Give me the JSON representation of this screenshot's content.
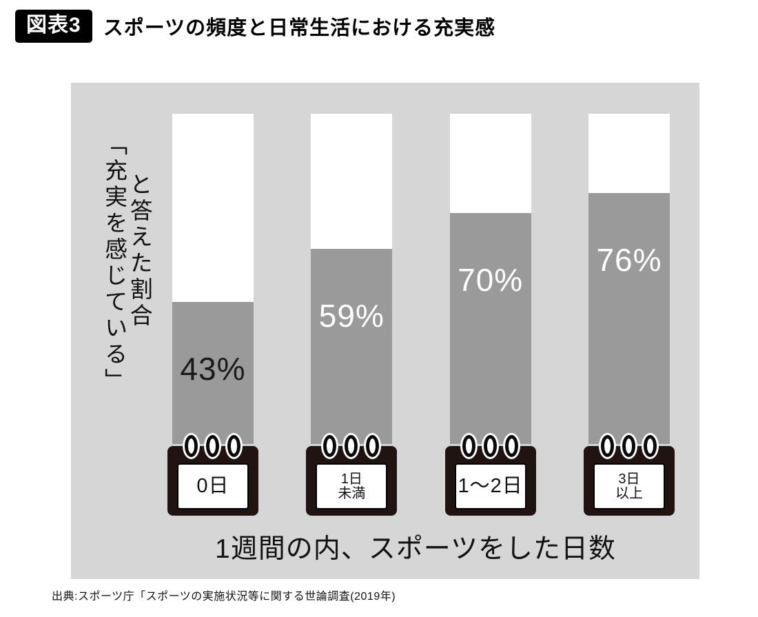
{
  "header": {
    "badge": "図表3",
    "title": "スポーツの頻度と日常生活における充実感"
  },
  "y_axis": {
    "column1": "「充実を感じている」",
    "column2": "と答えた割合"
  },
  "x_axis": {
    "label": "1週間の内、スポーツをした日数"
  },
  "calendars": [
    {
      "line1": "0日",
      "line2": ""
    },
    {
      "line1": "1日",
      "line2": "未満"
    },
    {
      "line1": "1〜2日",
      "line2": ""
    },
    {
      "line1": "3日",
      "line2": "以上"
    }
  ],
  "source": "出典:スポーツ庁「スポーツの実施状況等に関する世論調査(2019年)",
  "colors": {
    "chart_background": "#d6d6d6",
    "bar_background_column": "#ffffff",
    "calendar_body": "#201412",
    "badge_background": "#000000",
    "badge_text": "#ffffff"
  },
  "chart_data": {
    "type": "bar",
    "title": "スポーツの頻度と日常生活における充実感",
    "categories": [
      "0日",
      "1日未満",
      "1〜2日",
      "3日以上"
    ],
    "values": [
      43,
      59,
      70,
      76
    ],
    "value_labels": [
      "43%",
      "59%",
      "70%",
      "76%"
    ],
    "value_label_colors": [
      "#1a1a1a",
      "#ffffff",
      "#ffffff",
      "#ffffff"
    ],
    "bar_color": "#9a9a9a",
    "xlabel": "1週間の内、スポーツをした日数",
    "ylabel": "「充実を感じている」と答えた割合",
    "ylim": [
      0,
      100
    ],
    "grid": false,
    "legend": "none"
  }
}
